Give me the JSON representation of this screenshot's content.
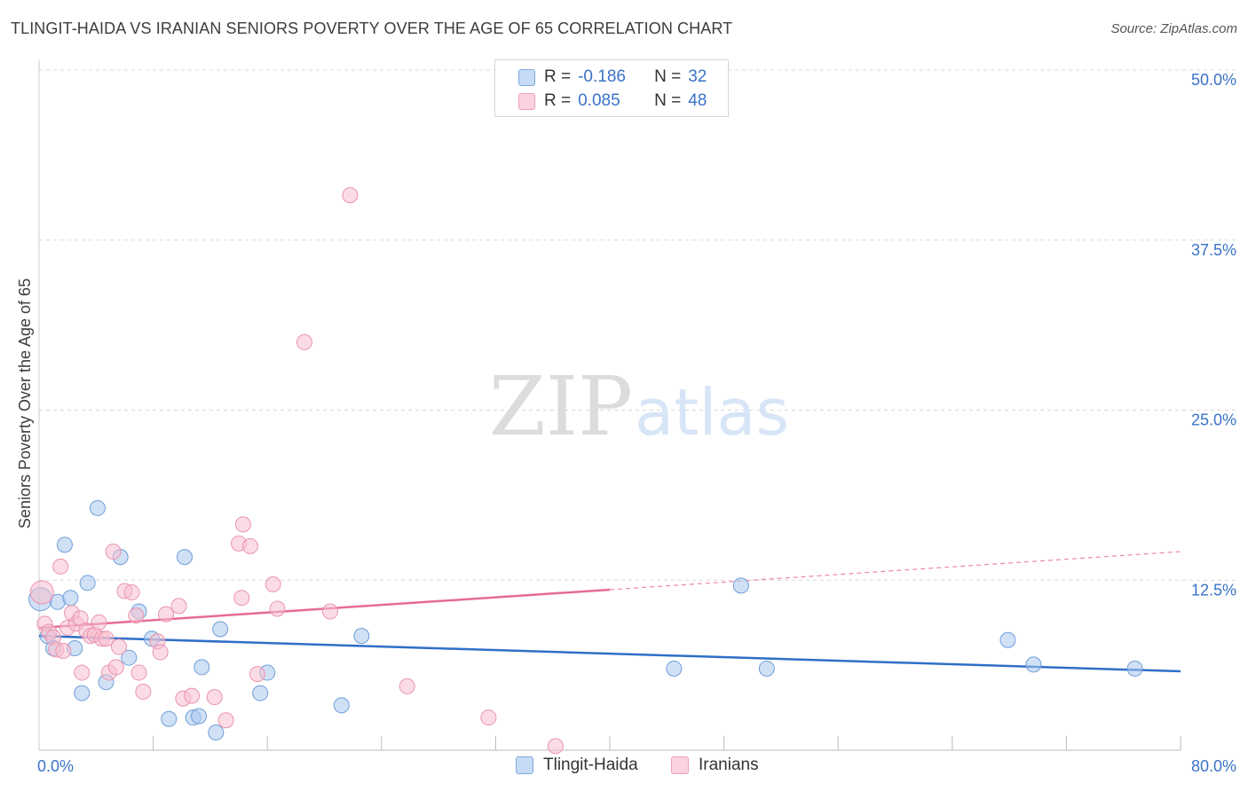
{
  "title": "TLINGIT-HAIDA VS IRANIAN SENIORS POVERTY OVER THE AGE OF 65 CORRELATION CHART",
  "source": "Source: ZipAtlas.com",
  "colors": {
    "blue_fill": "#a9c8ef",
    "blue_stroke": "#6f9ed8",
    "blue_line": "#2f6ec8",
    "pink_fill": "#f7bfd0",
    "pink_stroke": "#ea93b0",
    "pink_line": "#e66b96",
    "value_text": "#3a73c8",
    "grid": "#d9d9d9"
  },
  "legend": {
    "rows": [
      {
        "r_label": "R =",
        "r_value": "-0.186",
        "n_label": "N =",
        "n_value": "32"
      },
      {
        "r_label": "R =",
        "r_value": "0.085",
        "n_label": "N =",
        "n_value": "48"
      }
    ]
  },
  "bottom_legend": {
    "items": [
      {
        "label": "Tlingit-Haida"
      },
      {
        "label": "Iranians"
      }
    ]
  },
  "watermark": {
    "zip": "ZIP",
    "atlas": "atlas"
  },
  "chart_data": {
    "type": "scatter",
    "title": "TLINGIT-HAIDA VS IRANIAN SENIORS POVERTY OVER THE AGE OF 65 CORRELATION CHART",
    "xlabel": "",
    "ylabel": "Seniors Poverty Over the Age of 65",
    "xlim": [
      0,
      80
    ],
    "ylim": [
      0,
      50
    ],
    "x_tick_labels": [
      {
        "value": 0,
        "label": "0.0%"
      },
      {
        "value": 80,
        "label": "80.0%"
      }
    ],
    "y_tick_labels": [
      {
        "value": 50,
        "label": "50.0%"
      },
      {
        "value": 37.5,
        "label": "37.5%"
      },
      {
        "value": 25,
        "label": "25.0%"
      },
      {
        "value": 12.5,
        "label": "12.5%"
      }
    ],
    "series": [
      {
        "name": "Tlingit-Haida",
        "r": -0.186,
        "n": 32,
        "trend": {
          "x0": 0,
          "y0": 8.4,
          "x1": 80,
          "y1": 5.8,
          "solid_until": 80
        },
        "points": [
          [
            0.1,
            11.1
          ],
          [
            0.6,
            8.4
          ],
          [
            1.0,
            7.5
          ],
          [
            1.3,
            10.9
          ],
          [
            1.8,
            15.1
          ],
          [
            2.2,
            11.2
          ],
          [
            2.5,
            7.5
          ],
          [
            3.0,
            4.2
          ],
          [
            3.4,
            12.3
          ],
          [
            4.1,
            17.8
          ],
          [
            4.7,
            5.0
          ],
          [
            5.7,
            14.2
          ],
          [
            6.3,
            6.8
          ],
          [
            7.0,
            10.2
          ],
          [
            7.9,
            8.2
          ],
          [
            9.1,
            2.3
          ],
          [
            10.2,
            14.2
          ],
          [
            10.8,
            2.4
          ],
          [
            11.2,
            2.5
          ],
          [
            11.4,
            6.1
          ],
          [
            12.4,
            1.3
          ],
          [
            12.7,
            8.9
          ],
          [
            15.5,
            4.2
          ],
          [
            16.0,
            5.7
          ],
          [
            21.2,
            3.3
          ],
          [
            22.6,
            8.4
          ],
          [
            44.5,
            6.0
          ],
          [
            49.2,
            12.1
          ],
          [
            51.0,
            6.0
          ],
          [
            67.9,
            8.1
          ],
          [
            69.7,
            6.3
          ],
          [
            76.8,
            6.0
          ]
        ]
      },
      {
        "name": "Iranians",
        "r": 0.085,
        "n": 48,
        "trend": {
          "x0": 0,
          "y0": 9.0,
          "x1": 80,
          "y1": 14.6,
          "solid_until": 40
        },
        "points": [
          [
            0.2,
            11.6
          ],
          [
            0.4,
            9.3
          ],
          [
            0.7,
            8.7
          ],
          [
            1.0,
            8.3
          ],
          [
            1.2,
            7.4
          ],
          [
            1.5,
            13.5
          ],
          [
            1.7,
            7.3
          ],
          [
            2.0,
            9.0
          ],
          [
            2.3,
            10.1
          ],
          [
            2.6,
            9.3
          ],
          [
            2.9,
            9.7
          ],
          [
            3.0,
            5.7
          ],
          [
            3.3,
            8.8
          ],
          [
            3.6,
            8.4
          ],
          [
            3.9,
            8.5
          ],
          [
            4.2,
            9.4
          ],
          [
            4.4,
            8.2
          ],
          [
            4.7,
            8.2
          ],
          [
            4.9,
            5.7
          ],
          [
            5.2,
            14.6
          ],
          [
            5.4,
            6.1
          ],
          [
            5.6,
            7.6
          ],
          [
            6.0,
            11.7
          ],
          [
            6.5,
            11.6
          ],
          [
            6.8,
            9.9
          ],
          [
            7.0,
            5.7
          ],
          [
            7.3,
            4.3
          ],
          [
            8.3,
            8.0
          ],
          [
            8.5,
            7.2
          ],
          [
            8.9,
            10.0
          ],
          [
            9.8,
            10.6
          ],
          [
            10.1,
            3.8
          ],
          [
            10.7,
            4.0
          ],
          [
            12.3,
            3.9
          ],
          [
            13.1,
            2.2
          ],
          [
            14.0,
            15.2
          ],
          [
            14.2,
            11.2
          ],
          [
            14.3,
            16.6
          ],
          [
            14.8,
            15.0
          ],
          [
            15.3,
            5.6
          ],
          [
            16.4,
            12.2
          ],
          [
            16.7,
            10.4
          ],
          [
            18.6,
            30.0
          ],
          [
            20.4,
            10.2
          ],
          [
            21.8,
            40.8
          ],
          [
            25.8,
            4.7
          ],
          [
            31.5,
            2.4
          ],
          [
            36.2,
            0.3
          ]
        ]
      }
    ]
  }
}
